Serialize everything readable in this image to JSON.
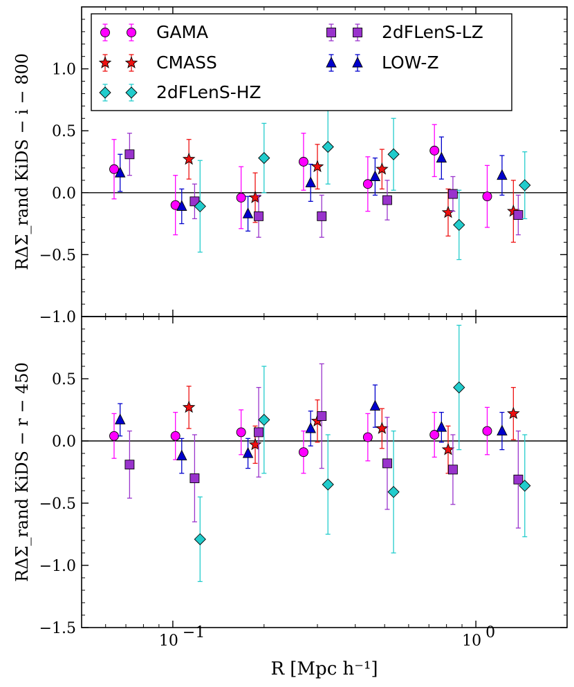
{
  "chart_data": [
    {
      "type": "scatter",
      "panel": "top",
      "ylabel": "RΔΣ_rand  KiDS − i − 800",
      "ylim": [
        -1.0,
        1.5
      ],
      "yticks": [
        -1.0,
        -0.5,
        0.0,
        0.5,
        1.0
      ],
      "ytick_labels": [
        "−1.0",
        "−0.5",
        "0.0",
        "0.5",
        "1.0"
      ],
      "xlim": [
        0.05,
        2.0
      ],
      "xscale": "log",
      "legend": {
        "placement": "top-left",
        "entries": [
          "GAMA",
          "CMASS",
          "2dFLenS-HZ",
          "2dFLenS-LZ",
          "LOW-Z"
        ]
      },
      "series": [
        {
          "name": "GAMA",
          "marker": "circle",
          "color": "#ff00ff",
          "x": [
            0.064,
            0.102,
            0.168,
            0.27,
            0.44,
            0.73,
            1.09
          ],
          "y": [
            0.19,
            -0.1,
            -0.04,
            0.25,
            0.07,
            0.34,
            -0.03
          ],
          "err": [
            0.24,
            0.24,
            0.25,
            0.23,
            0.22,
            0.21,
            0.25
          ]
        },
        {
          "name": "LOW-Z",
          "marker": "triangle",
          "color": "#0000cc",
          "x": [
            0.067,
            0.107,
            0.177,
            0.285,
            0.465,
            0.77,
            1.22
          ],
          "y": [
            0.16,
            -0.11,
            -0.17,
            0.08,
            0.13,
            0.28,
            0.14
          ],
          "err": [
            0.15,
            0.14,
            0.14,
            0.15,
            0.15,
            0.17,
            0.16
          ]
        },
        {
          "name": "CMASS",
          "marker": "star",
          "color": "#ee1111",
          "x": [
            0.113,
            0.187,
            0.3,
            0.49,
            0.81,
            1.33
          ],
          "y": [
            0.27,
            -0.04,
            0.21,
            0.19,
            -0.16,
            -0.15
          ],
          "err": [
            0.16,
            0.2,
            0.18,
            0.16,
            0.19,
            0.25
          ]
        },
        {
          "name": "2dFLenS-LZ",
          "marker": "square",
          "color": "#9933cc",
          "x": [
            0.072,
            0.118,
            0.192,
            0.31,
            0.51,
            0.84,
            1.38
          ],
          "y": [
            0.31,
            -0.07,
            -0.19,
            -0.19,
            -0.06,
            -0.01,
            -0.18
          ],
          "err": [
            0.17,
            0.14,
            0.17,
            0.17,
            0.16,
            0.14,
            0.16
          ]
        },
        {
          "name": "2dFLenS-HZ",
          "marker": "diamond",
          "color": "#22cccc",
          "x": [
            0.123,
            0.2,
            0.325,
            0.535,
            0.88,
            1.45
          ],
          "y": [
            -0.11,
            0.28,
            0.37,
            0.31,
            -0.26,
            0.06
          ],
          "err": [
            0.37,
            0.28,
            0.3,
            0.29,
            0.28,
            0.27
          ]
        }
      ]
    },
    {
      "type": "scatter",
      "panel": "bottom",
      "ylabel": "RΔΣ_rand  KiDS − r − 450",
      "xlabel": "R [Mpc h⁻¹]",
      "ylim": [
        -1.5,
        1.0
      ],
      "yticks": [
        -1.5,
        -1.0,
        -0.5,
        0.0,
        0.5
      ],
      "ytick_labels": [
        "−1.5",
        "−1.0",
        "−0.5",
        "0.0",
        "0.5"
      ],
      "xlim": [
        0.05,
        2.0
      ],
      "xscale": "log",
      "xticks": [
        0.1,
        1.0
      ],
      "series": [
        {
          "name": "GAMA",
          "marker": "circle",
          "color": "#ff00ff",
          "x": [
            0.064,
            0.102,
            0.168,
            0.27,
            0.44,
            0.73,
            1.09
          ],
          "y": [
            0.04,
            0.04,
            0.07,
            -0.09,
            0.03,
            0.05,
            0.08
          ],
          "err": [
            0.18,
            0.19,
            0.18,
            0.17,
            0.19,
            0.18,
            0.19
          ]
        },
        {
          "name": "LOW-Z",
          "marker": "triangle",
          "color": "#0000cc",
          "x": [
            0.067,
            0.107,
            0.177,
            0.285,
            0.465,
            0.77,
            1.22
          ],
          "y": [
            0.17,
            -0.12,
            -0.1,
            0.1,
            0.28,
            0.11,
            0.08
          ],
          "err": [
            0.13,
            0.14,
            0.12,
            0.14,
            0.17,
            0.12,
            0.15
          ]
        },
        {
          "name": "CMASS",
          "marker": "star",
          "color": "#ee1111",
          "x": [
            0.113,
            0.187,
            0.3,
            0.49,
            0.81,
            1.33
          ],
          "y": [
            0.27,
            -0.03,
            0.16,
            0.1,
            -0.07,
            0.22
          ],
          "err": [
            0.17,
            0.15,
            0.17,
            0.16,
            0.19,
            0.21
          ]
        },
        {
          "name": "2dFLenS-LZ",
          "marker": "square",
          "color": "#9933cc",
          "x": [
            0.072,
            0.118,
            0.192,
            0.31,
            0.51,
            0.84,
            1.38
          ],
          "y": [
            -0.19,
            -0.3,
            0.07,
            0.2,
            -0.18,
            -0.23,
            -0.31
          ],
          "err": [
            0.27,
            0.35,
            0.36,
            0.42,
            0.37,
            0.28,
            0.39
          ]
        },
        {
          "name": "2dFLenS-HZ",
          "marker": "diamond",
          "color": "#22cccc",
          "x": [
            0.123,
            0.2,
            0.325,
            0.535,
            0.88,
            1.45
          ],
          "y": [
            -0.79,
            0.17,
            -0.35,
            -0.41,
            0.43,
            -0.36
          ],
          "err": [
            0.34,
            0.43,
            0.4,
            0.49,
            0.5,
            0.41
          ]
        }
      ]
    }
  ]
}
